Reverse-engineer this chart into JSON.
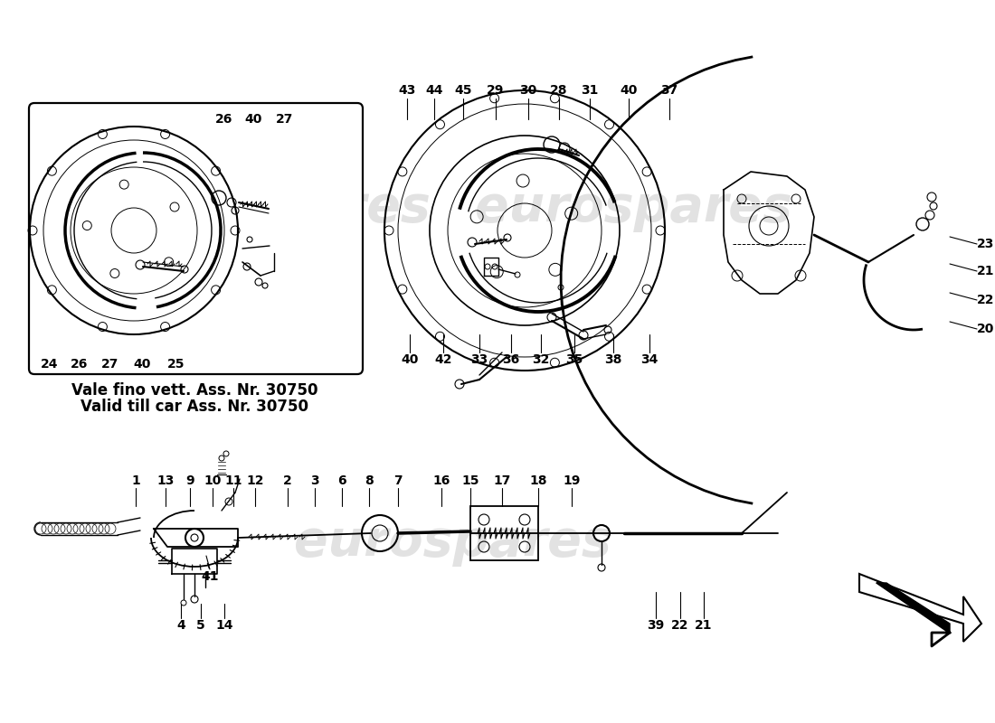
{
  "bg_color": "#ffffff",
  "note_line1": "Vale fino vett. Ass. Nr. 30750",
  "note_line2": "Valid till car Ass. Nr. 30750",
  "watermark": "eurospares",
  "top_labels_right": [
    "43",
    "44",
    "45",
    "29",
    "30",
    "28",
    "31",
    "40",
    "37"
  ],
  "bottom_labels_right": [
    "40",
    "42",
    "33",
    "36",
    "32",
    "35",
    "38",
    "34"
  ],
  "side_labels_right": [
    "23",
    "21",
    "22",
    "20"
  ],
  "inset_labels_top": [
    "26",
    "40",
    "27"
  ],
  "inset_labels_bottom": [
    "24",
    "26",
    "27",
    "40",
    "25"
  ],
  "bottom_top_labels": [
    "1",
    "13",
    "9",
    "10",
    "11",
    "12",
    "2",
    "3",
    "6",
    "8",
    "7",
    "16",
    "15",
    "17",
    "18",
    "19"
  ],
  "bottom_bot_labels": [
    "4",
    "5",
    "14"
  ],
  "bottom_far_labels": [
    "39",
    "22",
    "21"
  ],
  "label_41": "41",
  "fs": 10,
  "fs_note": 12
}
